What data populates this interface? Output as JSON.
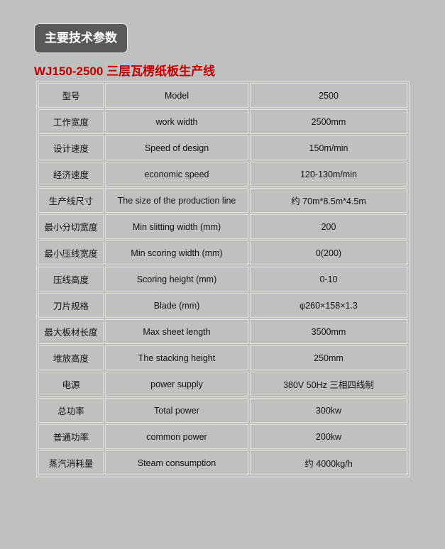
{
  "heading": "主要技术参数",
  "title": "WJ150-2500 三层瓦楞纸板生产线",
  "rows": [
    [
      "型号",
      "Model",
      "2500"
    ],
    [
      "工作宽度",
      "work width",
      "2500mm"
    ],
    [
      "设计速度",
      "Speed of design",
      "150m/min"
    ],
    [
      "经济速度",
      "economic speed",
      "120-130m/min"
    ],
    [
      "生产线尺寸",
      "The  size of the production line",
      "约 70m*8.5m*4.5m"
    ],
    [
      "最小分切宽度",
      "Min slitting width (mm)",
      "200"
    ],
    [
      "最小压线宽度",
      "Min scoring width (mm)",
      "0(200)"
    ],
    [
      "压线高度",
      "Scoring height (mm)",
      "0-10"
    ],
    [
      "刀片规格",
      "Blade (mm)",
      "φ260×158×1.3"
    ],
    [
      "最大板材长度",
      "Max sheet length",
      "3500mm"
    ],
    [
      "堆放高度",
      "The stacking height",
      "250mm"
    ],
    [
      "电源",
      "power supply",
      "380V 50Hz 三相四线制"
    ],
    [
      "总功率",
      "Total power",
      "300kw"
    ],
    [
      "普通功率",
      "common power",
      "200kw"
    ],
    [
      "蒸汽消耗量",
      "Steam consumption",
      "约 4000kg/h"
    ]
  ]
}
